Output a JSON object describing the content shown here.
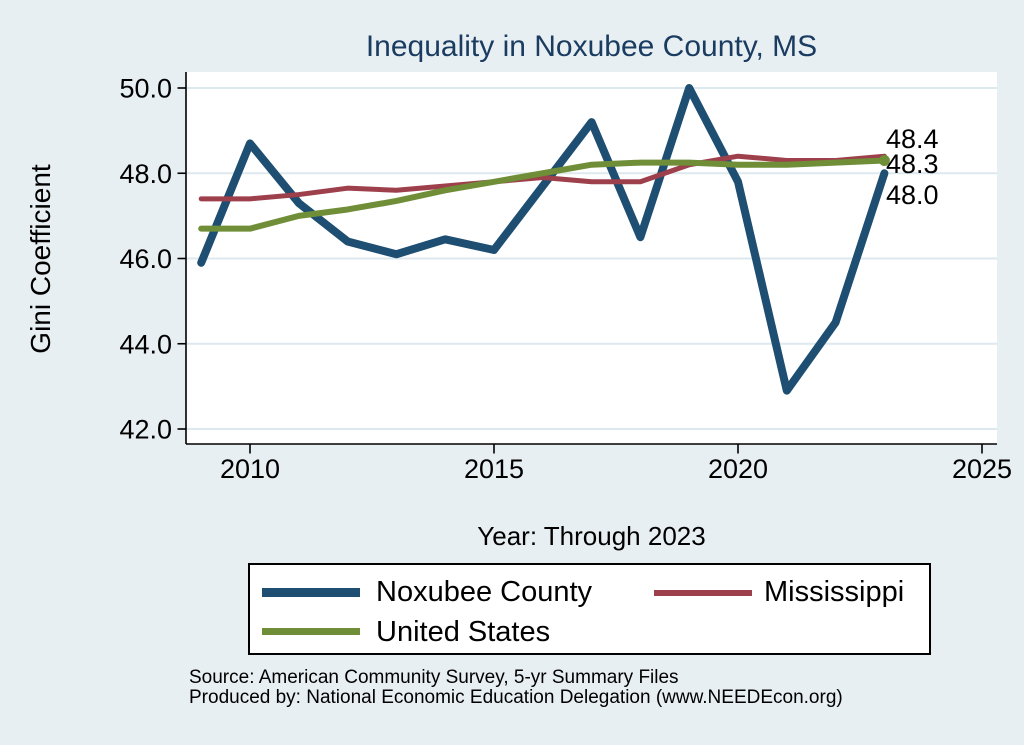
{
  "title": "Inequality in Noxubee County, MS",
  "axes": {
    "y_label": "Gini Coefficient",
    "x_label": "Year: Through 2023"
  },
  "chart_data": {
    "type": "line",
    "title": "Inequality in Noxubee County, MS",
    "xlabel": "Year: Through 2023",
    "ylabel": "Gini Coefficient",
    "x": [
      2009,
      2010,
      2011,
      2012,
      2013,
      2014,
      2015,
      2016,
      2017,
      2018,
      2019,
      2020,
      2021,
      2022,
      2023
    ],
    "series": [
      {
        "name": "Noxubee County",
        "color": "#1e4e71",
        "stroke_width": 8,
        "values": [
          45.9,
          48.7,
          47.3,
          46.4,
          46.1,
          46.45,
          46.2,
          47.7,
          49.2,
          46.5,
          50.0,
          47.8,
          42.9,
          44.5,
          48.0
        ]
      },
      {
        "name": "Mississippi",
        "color": "#9e3f4c",
        "stroke_width": 5,
        "values": [
          47.4,
          47.4,
          47.5,
          47.65,
          47.6,
          47.7,
          47.8,
          47.9,
          47.8,
          47.8,
          48.2,
          48.4,
          48.3,
          48.3,
          48.4
        ]
      },
      {
        "name": "United States",
        "color": "#6f8e37",
        "stroke_width": 6,
        "end_marker": true,
        "values": [
          46.7,
          46.7,
          47.0,
          47.15,
          47.35,
          47.6,
          47.8,
          48.0,
          48.2,
          48.25,
          48.25,
          48.2,
          48.2,
          48.25,
          48.3
        ]
      }
    ],
    "x_ticks": [
      2010,
      2015,
      2020,
      2025
    ],
    "x_tick_labels": [
      "2010",
      "2015",
      "2020",
      "2025"
    ],
    "y_ticks": [
      50.0,
      48.0,
      46.0,
      44.0,
      42.0
    ],
    "y_tick_labels": [
      "50.0",
      "48.0",
      "46.0",
      "44.0",
      "42.0"
    ],
    "xlim": [
      2008.7,
      2025.3
    ],
    "ylim": [
      41.6,
      50.4
    ],
    "grid": "horizontal",
    "legend_position": "bottom",
    "end_labels": [
      {
        "text": "48.4",
        "series": "Mississippi"
      },
      {
        "text": "48.3",
        "series": "United States"
      },
      {
        "text": "48.0",
        "series": "Noxubee County"
      }
    ]
  },
  "legend": {
    "items": [
      {
        "label": "Noxubee County",
        "color": "#1e4e71",
        "swatch_height": 9
      },
      {
        "label": "Mississippi",
        "color": "#9e3f4c",
        "swatch_height": 6
      },
      {
        "label": "United States",
        "color": "#6f8e37",
        "swatch_height": 7
      }
    ]
  },
  "footer": {
    "source_line1": "Source: American Community Survey, 5-yr Summary Files",
    "source_line2": "Produced by: National Economic Education Delegation (www.NEEDEcon.org)"
  },
  "colors": {
    "background": "#e8eff2",
    "plot_background": "#ffffff",
    "gridline": "#dde9ee",
    "axis": "#000000",
    "title_text": "#1b3c61",
    "body_text": "#000000"
  }
}
